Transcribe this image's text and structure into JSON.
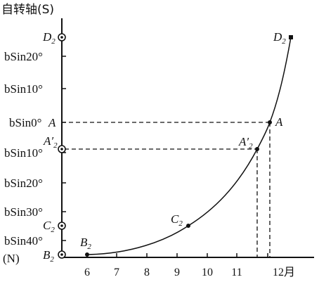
{
  "title": "自转轴(S)",
  "bottom_label": "(N)",
  "y_axis_labels": [
    {
      "text": "bSin20°",
      "at": "20N"
    },
    {
      "text": "bSin10°",
      "at": "10N"
    },
    {
      "text": "bSin0°",
      "at": "0"
    },
    {
      "text": "bSin10°",
      "at": "10S"
    },
    {
      "text": "bSin20°",
      "at": "20S"
    },
    {
      "text": "bSin30°",
      "at": "30S"
    },
    {
      "text": "bSin40°",
      "at": "40S"
    }
  ],
  "axis_markers": [
    {
      "base": "D",
      "sub": "2"
    },
    {
      "base": "A",
      "sub": ""
    },
    {
      "base": "A′",
      "sub": "2"
    },
    {
      "base": "C",
      "sub": "2"
    },
    {
      "base": "B",
      "sub": "2"
    }
  ],
  "x_axis_labels": [
    "6",
    "7",
    "8",
    "9",
    "10",
    "11",
    "12月"
  ],
  "curve_points": [
    {
      "base": "B",
      "sub": "2"
    },
    {
      "base": "C",
      "sub": "2"
    },
    {
      "base": "A′",
      "sub": "2"
    },
    {
      "base": "A",
      "sub": ""
    },
    {
      "base": "D",
      "sub": "2"
    }
  ]
}
